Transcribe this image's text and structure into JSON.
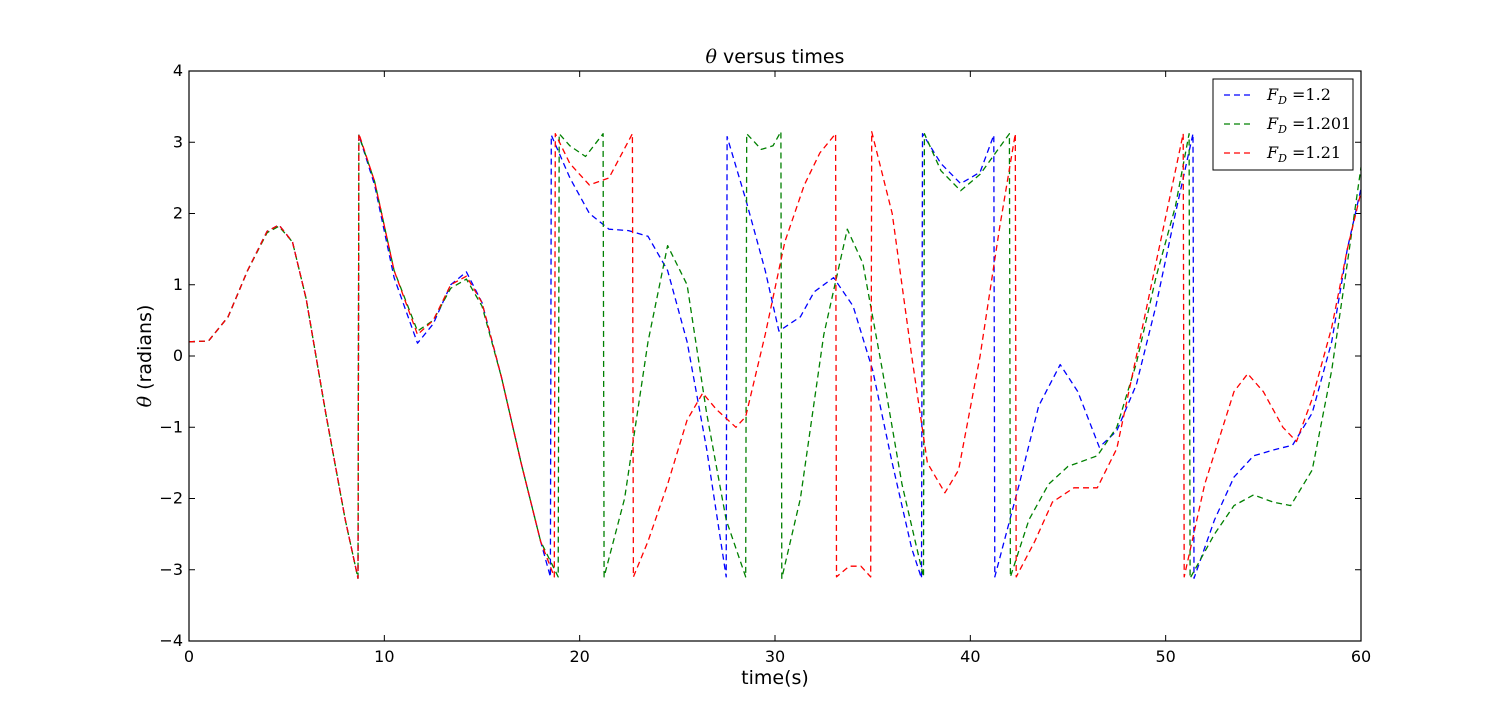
{
  "chart_data": {
    "type": "line",
    "title_symbol": "θ",
    "title_text": " versus times",
    "xlabel": "time(s)",
    "ylabel_symbol": "θ",
    "ylabel_text": " (radians)",
    "xlim": [
      0,
      60
    ],
    "ylim": [
      -4,
      4
    ],
    "xticks": [
      0,
      10,
      20,
      30,
      40,
      50,
      60
    ],
    "yticks": [
      -4,
      -3,
      -2,
      -1,
      0,
      1,
      2,
      3,
      4
    ],
    "grid": false,
    "legend_position": "top-right",
    "series": [
      {
        "name": "F_D =1.2",
        "legend_symbol": "F",
        "legend_sub": "D",
        "legend_value": " =1.2",
        "color": "#0000ff",
        "points": [
          [
            0,
            0.2
          ],
          [
            1,
            0.21
          ],
          [
            2,
            0.55
          ],
          [
            3,
            1.2
          ],
          [
            4,
            1.75
          ],
          [
            4.6,
            1.84
          ],
          [
            5.3,
            1.6
          ],
          [
            6,
            0.8
          ],
          [
            7,
            -0.8
          ],
          [
            8,
            -2.3
          ],
          [
            8.65,
            -3.12
          ],
          [
            8.7,
            3.1
          ],
          [
            9.5,
            2.4
          ],
          [
            10.5,
            1.1
          ],
          [
            11.7,
            0.18
          ],
          [
            12.5,
            0.45
          ],
          [
            13.4,
            1.0
          ],
          [
            14.2,
            1.18
          ],
          [
            15,
            0.75
          ],
          [
            16,
            -0.3
          ],
          [
            17,
            -1.5
          ],
          [
            18,
            -2.6
          ],
          [
            18.5,
            -3.1
          ],
          [
            18.55,
            3.1
          ],
          [
            19.5,
            2.5
          ],
          [
            20.5,
            2.0
          ],
          [
            21.5,
            1.78
          ],
          [
            22.5,
            1.76
          ],
          [
            23.5,
            1.68
          ],
          [
            24.5,
            1.2
          ],
          [
            25.5,
            0.2
          ],
          [
            26.5,
            -1.3
          ],
          [
            27.5,
            -3.1
          ],
          [
            27.55,
            3.08
          ],
          [
            28.5,
            2.2
          ],
          [
            29.5,
            1.2
          ],
          [
            30.2,
            0.35
          ],
          [
            31.3,
            0.55
          ],
          [
            32,
            0.9
          ],
          [
            33,
            1.1
          ],
          [
            34,
            0.7
          ],
          [
            35,
            -0.2
          ],
          [
            36,
            -1.5
          ],
          [
            37,
            -2.7
          ],
          [
            37.5,
            -3.12
          ],
          [
            37.55,
            3.12
          ],
          [
            38.5,
            2.7
          ],
          [
            39.5,
            2.42
          ],
          [
            40.5,
            2.58
          ],
          [
            41.2,
            3.1
          ],
          [
            41.25,
            -3.1
          ],
          [
            42.5,
            -1.8
          ],
          [
            43.5,
            -0.7
          ],
          [
            44.6,
            -0.12
          ],
          [
            45.5,
            -0.5
          ],
          [
            46.6,
            -1.28
          ],
          [
            47.5,
            -1.05
          ],
          [
            48.5,
            -0.4
          ],
          [
            49.5,
            0.7
          ],
          [
            50.5,
            2.0
          ],
          [
            51.4,
            3.12
          ],
          [
            51.45,
            -3.12
          ],
          [
            52.5,
            -2.3
          ],
          [
            53.5,
            -1.7
          ],
          [
            54.5,
            -1.4
          ],
          [
            55.5,
            -1.32
          ],
          [
            56.5,
            -1.25
          ],
          [
            57.5,
            -0.8
          ],
          [
            58.5,
            0.2
          ],
          [
            59.3,
            1.5
          ],
          [
            60,
            2.35
          ]
        ]
      },
      {
        "name": "F_D =1.201",
        "legend_symbol": "F",
        "legend_sub": "D",
        "legend_value": " =1.201",
        "color": "#008000",
        "points": [
          [
            0,
            0.2
          ],
          [
            1,
            0.21
          ],
          [
            2,
            0.55
          ],
          [
            3,
            1.2
          ],
          [
            4,
            1.73
          ],
          [
            4.6,
            1.82
          ],
          [
            5.3,
            1.6
          ],
          [
            6,
            0.8
          ],
          [
            7,
            -0.8
          ],
          [
            8,
            -2.3
          ],
          [
            8.65,
            -3.12
          ],
          [
            8.7,
            3.1
          ],
          [
            9.5,
            2.45
          ],
          [
            10.5,
            1.2
          ],
          [
            11.7,
            0.35
          ],
          [
            12.5,
            0.5
          ],
          [
            13.4,
            0.95
          ],
          [
            14.2,
            1.08
          ],
          [
            15,
            0.7
          ],
          [
            16,
            -0.3
          ],
          [
            17,
            -1.5
          ],
          [
            18,
            -2.6
          ],
          [
            18.9,
            -3.1
          ],
          [
            18.95,
            3.12
          ],
          [
            19.5,
            2.95
          ],
          [
            20.3,
            2.8
          ],
          [
            21.2,
            3.12
          ],
          [
            21.25,
            -3.1
          ],
          [
            22.3,
            -2.0
          ],
          [
            23.5,
            0.2
          ],
          [
            24.5,
            1.55
          ],
          [
            25.5,
            1.0
          ],
          [
            26.5,
            -0.8
          ],
          [
            27.5,
            -2.3
          ],
          [
            28.5,
            -3.1
          ],
          [
            28.55,
            3.12
          ],
          [
            29.3,
            2.9
          ],
          [
            29.9,
            2.95
          ],
          [
            30.3,
            3.15
          ],
          [
            30.35,
            -3.12
          ],
          [
            31.3,
            -2.0
          ],
          [
            32.5,
            0.3
          ],
          [
            33.7,
            1.78
          ],
          [
            34.5,
            1.3
          ],
          [
            35.5,
            -0.2
          ],
          [
            36.5,
            -1.8
          ],
          [
            37.6,
            -3.1
          ],
          [
            37.65,
            3.12
          ],
          [
            38.5,
            2.6
          ],
          [
            39.5,
            2.32
          ],
          [
            40.5,
            2.55
          ],
          [
            42,
            3.12
          ],
          [
            42.05,
            -3.1
          ],
          [
            43,
            -2.3
          ],
          [
            44,
            -1.8
          ],
          [
            45,
            -1.55
          ],
          [
            46.5,
            -1.4
          ],
          [
            47.5,
            -1.0
          ],
          [
            48.5,
            -0.1
          ],
          [
            49.5,
            1.1
          ],
          [
            50.5,
            2.1
          ],
          [
            51.2,
            3.12
          ],
          [
            51.25,
            -3.12
          ],
          [
            52.5,
            -2.5
          ],
          [
            53.5,
            -2.1
          ],
          [
            54.5,
            -1.95
          ],
          [
            55.5,
            -2.05
          ],
          [
            56.4,
            -2.1
          ],
          [
            57.5,
            -1.6
          ],
          [
            58.5,
            -0.2
          ],
          [
            59.3,
            1.3
          ],
          [
            60,
            2.65
          ]
        ]
      },
      {
        "name": "F_D =1.21",
        "legend_symbol": "F",
        "legend_sub": "D",
        "legend_value": " =1.21",
        "color": "#ff0000",
        "points": [
          [
            0,
            0.2
          ],
          [
            1,
            0.21
          ],
          [
            2,
            0.55
          ],
          [
            3,
            1.2
          ],
          [
            4,
            1.75
          ],
          [
            4.6,
            1.84
          ],
          [
            5.3,
            1.6
          ],
          [
            6,
            0.8
          ],
          [
            7,
            -0.8
          ],
          [
            8,
            -2.3
          ],
          [
            8.65,
            -3.12
          ],
          [
            8.7,
            3.12
          ],
          [
            9.5,
            2.45
          ],
          [
            10.5,
            1.2
          ],
          [
            11.7,
            0.3
          ],
          [
            12.5,
            0.5
          ],
          [
            13.4,
            1.0
          ],
          [
            14.2,
            1.12
          ],
          [
            15,
            0.75
          ],
          [
            16,
            -0.3
          ],
          [
            17,
            -1.5
          ],
          [
            18,
            -2.6
          ],
          [
            18.7,
            -3.1
          ],
          [
            18.75,
            3.12
          ],
          [
            19.5,
            2.7
          ],
          [
            20.5,
            2.4
          ],
          [
            21.5,
            2.5
          ],
          [
            22.7,
            3.12
          ],
          [
            22.75,
            -3.1
          ],
          [
            23.5,
            -2.6
          ],
          [
            24.5,
            -1.8
          ],
          [
            25.5,
            -0.9
          ],
          [
            26.3,
            -0.52
          ],
          [
            27,
            -0.75
          ],
          [
            28,
            -1.0
          ],
          [
            28.5,
            -0.85
          ],
          [
            29.5,
            0.3
          ],
          [
            30.5,
            1.6
          ],
          [
            31.5,
            2.4
          ],
          [
            32.3,
            2.85
          ],
          [
            33.1,
            3.12
          ],
          [
            33.15,
            -3.1
          ],
          [
            33.8,
            -2.95
          ],
          [
            34.4,
            -2.95
          ],
          [
            34.9,
            -3.1
          ],
          [
            34.95,
            3.15
          ],
          [
            36,
            2.0
          ],
          [
            37,
            0.0
          ],
          [
            37.8,
            -1.5
          ],
          [
            38.7,
            -1.92
          ],
          [
            39.4,
            -1.6
          ],
          [
            40.5,
            0.0
          ],
          [
            41.5,
            1.8
          ],
          [
            42.3,
            3.12
          ],
          [
            42.35,
            -3.1
          ],
          [
            43.3,
            -2.6
          ],
          [
            44.2,
            -2.05
          ],
          [
            45.3,
            -1.85
          ],
          [
            46.5,
            -1.85
          ],
          [
            47.5,
            -1.3
          ],
          [
            48.5,
            0.0
          ],
          [
            49.5,
            1.3
          ],
          [
            50.9,
            3.12
          ],
          [
            50.95,
            -3.1
          ],
          [
            52,
            -1.8
          ],
          [
            53.5,
            -0.5
          ],
          [
            54.2,
            -0.25
          ],
          [
            55,
            -0.5
          ],
          [
            56,
            -1.0
          ],
          [
            56.7,
            -1.2
          ],
          [
            57.5,
            -0.6
          ],
          [
            58.5,
            0.4
          ],
          [
            59.3,
            1.5
          ],
          [
            60,
            2.3
          ]
        ]
      }
    ]
  }
}
